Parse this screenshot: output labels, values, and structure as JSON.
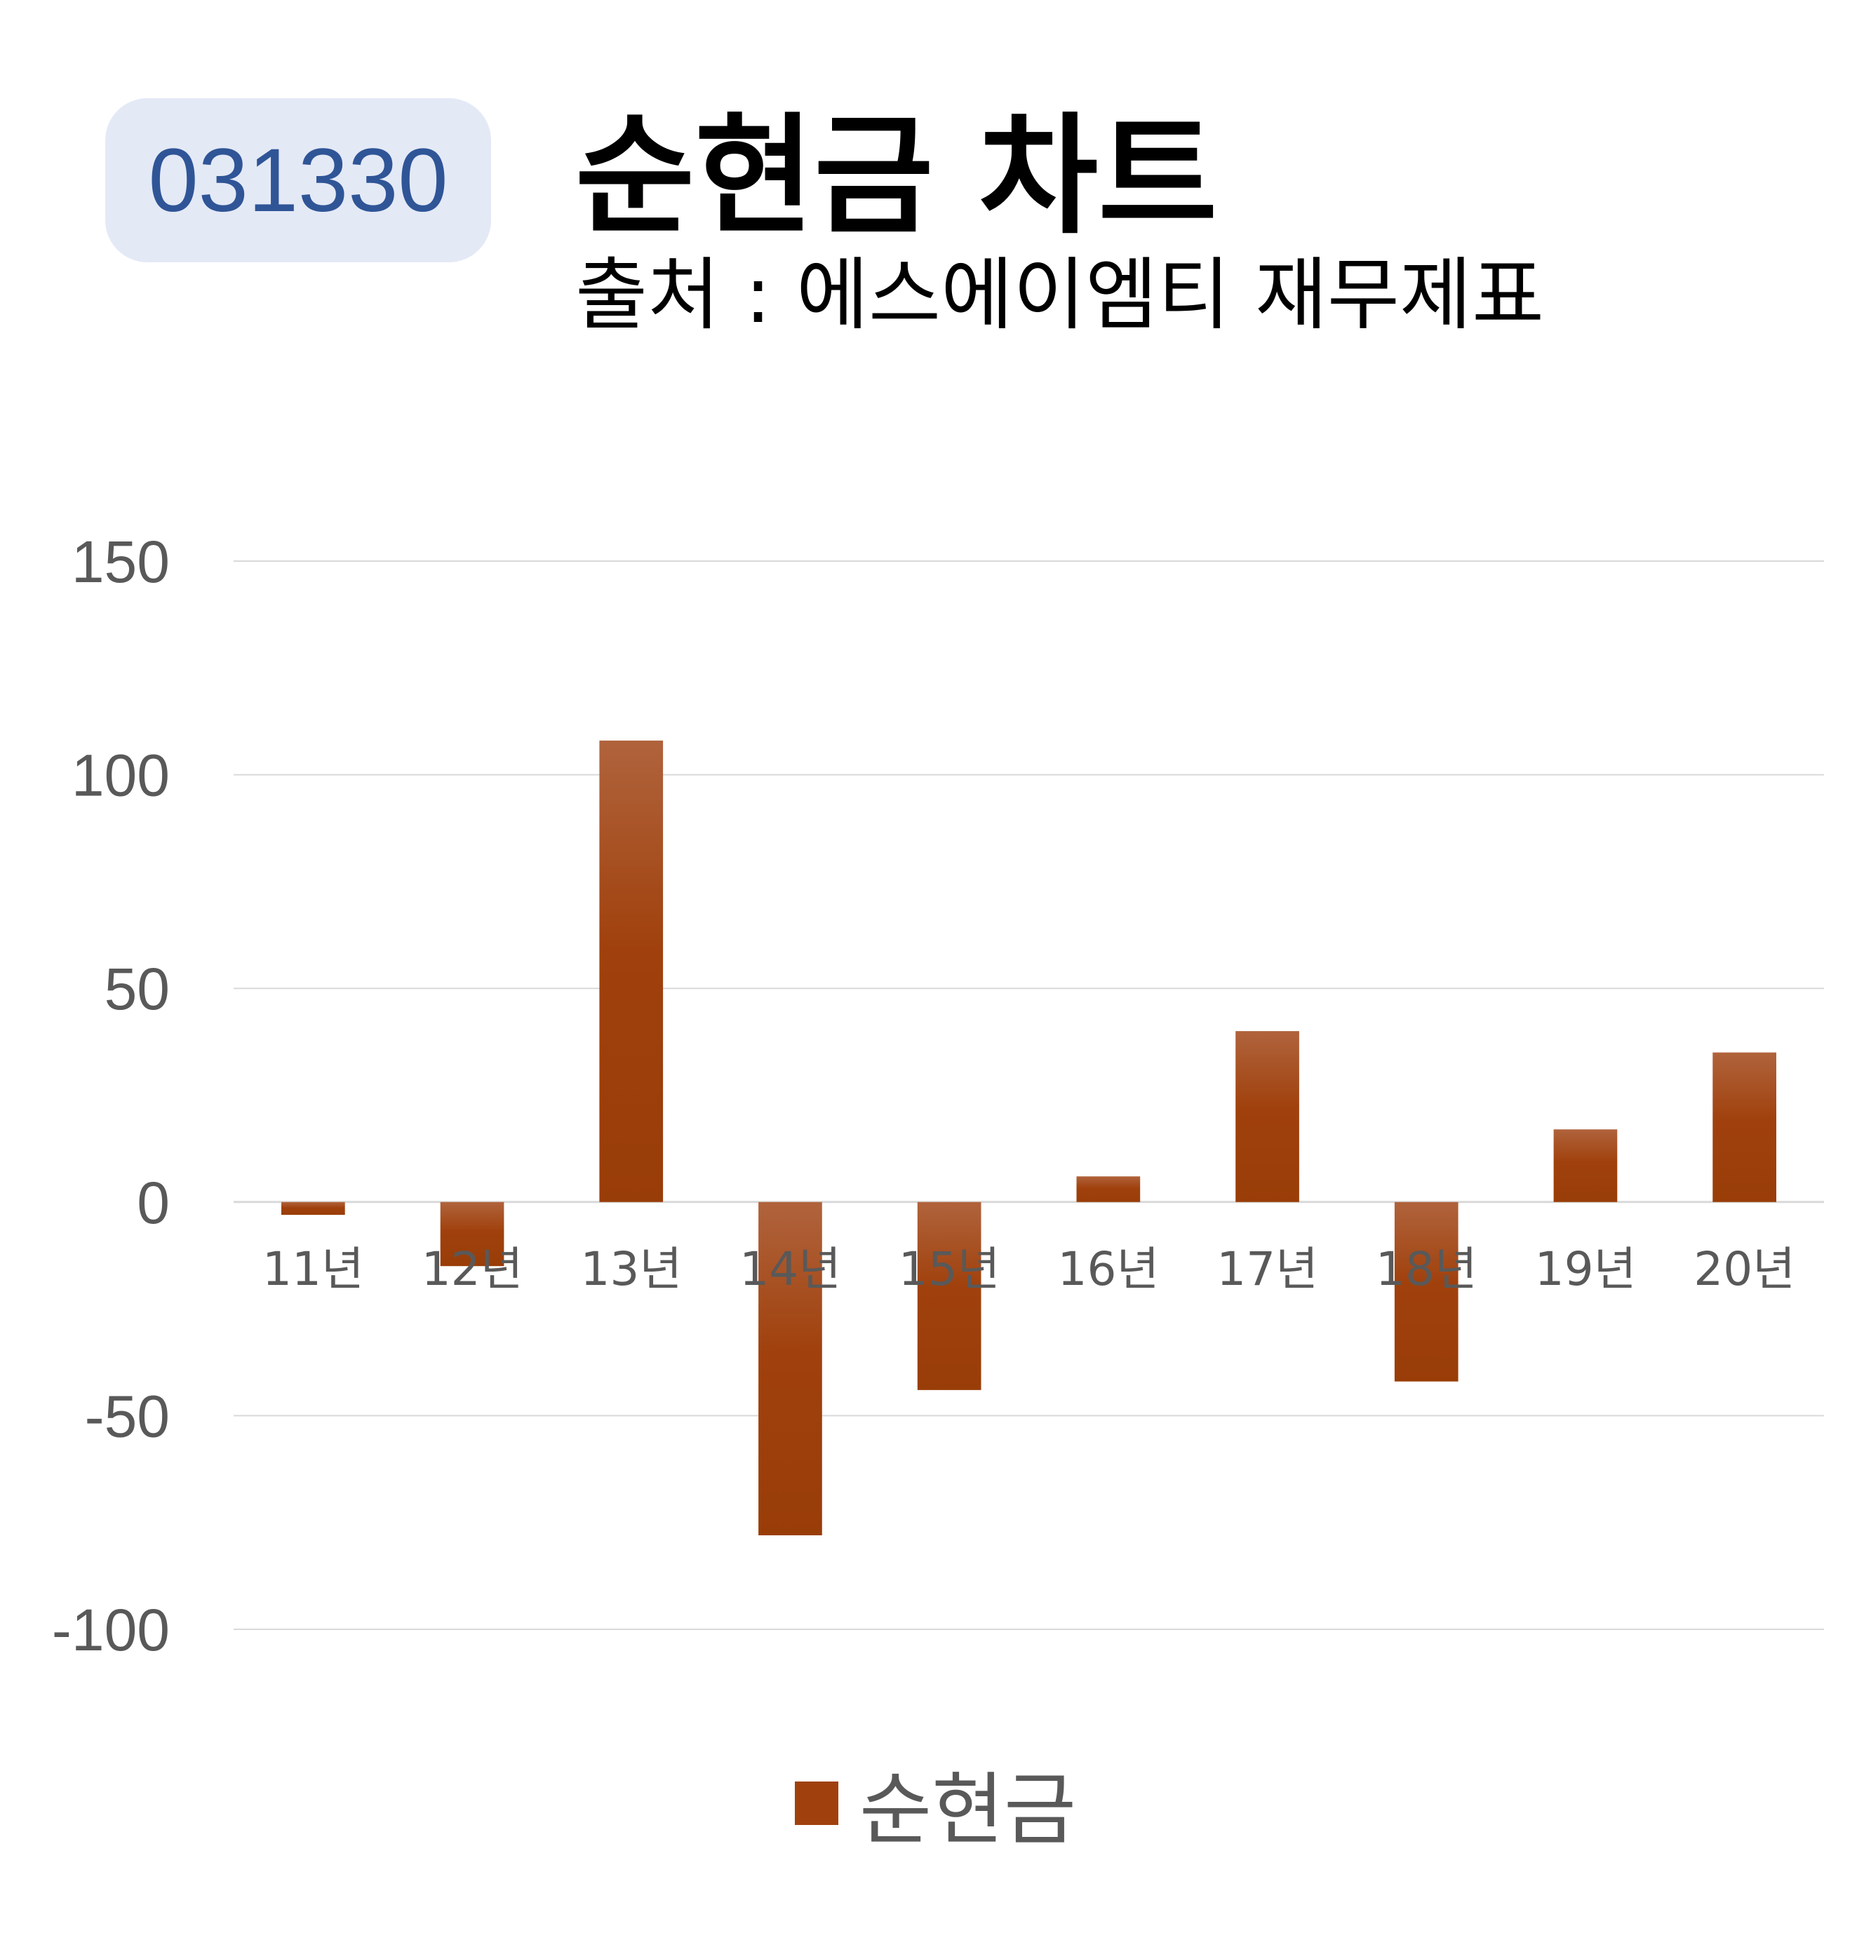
{
  "badge": {
    "code": "031330"
  },
  "header": {
    "title": "순현금 차트",
    "subtitle": "출처 : 에스에이엠티 재무제표"
  },
  "colors": {
    "bar": "#a0410d",
    "bar_top": "#b0633c",
    "grid": "#d9d9d9",
    "axis_text": "#595959",
    "badge_bg": "#e4e9f6",
    "badge_text": "#2f5597"
  },
  "chart_data": {
    "type": "bar",
    "categories": [
      "11년",
      "12년",
      "13년",
      "14년",
      "15년",
      "16년",
      "17년",
      "18년",
      "19년",
      "20년"
    ],
    "series": [
      {
        "name": "순현금",
        "values": [
          -3,
          -15,
          108,
          -78,
          -44,
          6,
          40,
          -42,
          17,
          35
        ]
      }
    ],
    "yticks": [
      150,
      100,
      50,
      0,
      -50,
      -100
    ],
    "ylim": [
      -100,
      150
    ],
    "grid": true,
    "legend": "bottom"
  }
}
